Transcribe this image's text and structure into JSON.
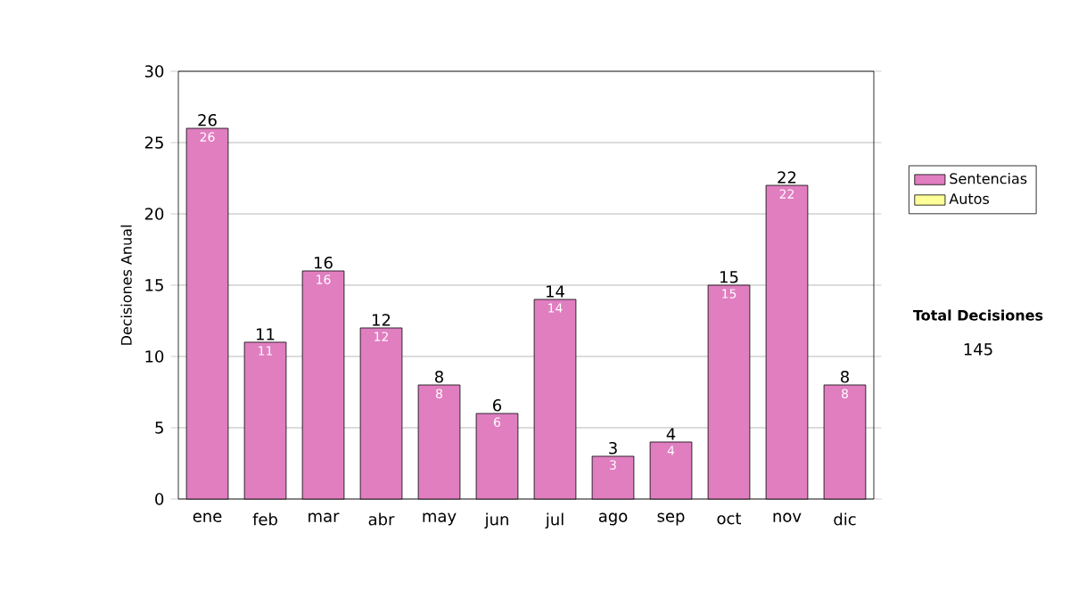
{
  "chart_data": {
    "type": "bar",
    "stacked": true,
    "ylabel": "Decisiones Anual",
    "categories": [
      "ene",
      "feb",
      "mar",
      "abr",
      "may",
      "jun",
      "jul",
      "ago",
      "sep",
      "oct",
      "nov",
      "dic"
    ],
    "series": [
      {
        "name": "Sentencias",
        "color": "#e07ec0",
        "values": [
          26,
          11,
          16,
          12,
          8,
          6,
          14,
          3,
          4,
          15,
          22,
          8
        ],
        "value_labels": [
          "26",
          "11",
          "16",
          "12",
          "8",
          "6",
          "14",
          "3",
          "4",
          "15",
          "22",
          "8"
        ]
      },
      {
        "name": "Autos",
        "color": "#ffff99",
        "values": [
          0,
          0,
          0,
          0,
          0,
          0,
          0,
          0,
          0,
          0,
          0,
          0
        ]
      }
    ],
    "totals": [
      "26",
      "11",
      "16",
      "12",
      "8",
      "6",
      "14",
      "3",
      "4",
      "15",
      "22",
      "8"
    ],
    "ylim": [
      0,
      30
    ],
    "yticks": [
      0,
      5,
      10,
      15,
      20,
      25,
      30
    ],
    "grid": "y",
    "legend": "right",
    "annotations": [
      "Total Decisiones",
      "145"
    ]
  }
}
